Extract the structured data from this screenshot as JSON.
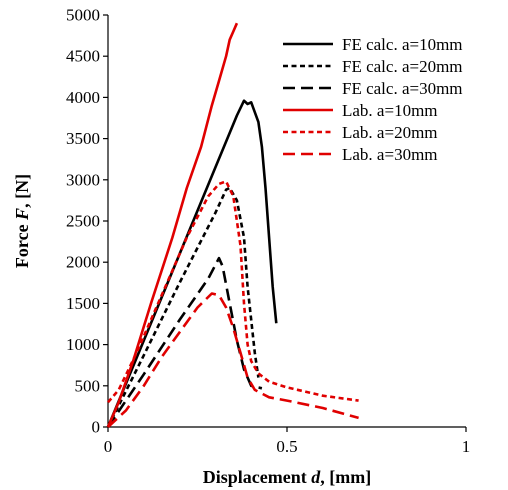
{
  "chart_data": {
    "type": "line",
    "title": "",
    "xlabel_prefix": "Displacement ",
    "xlabel_var": "d",
    "xlabel_suffix": ", [mm]",
    "ylabel_prefix": "Force ",
    "ylabel_var": "F",
    "ylabel_suffix": ", [N]",
    "xlim": [
      0,
      1
    ],
    "ylim": [
      0,
      5000
    ],
    "xticks": [
      0,
      0.5,
      1
    ],
    "xtick_labels": [
      "0",
      "0.5",
      "1"
    ],
    "yticks": [
      0,
      500,
      1000,
      1500,
      2000,
      2500,
      3000,
      3500,
      4000,
      4500,
      5000
    ],
    "ytick_labels": [
      "0",
      "500",
      "1000",
      "1500",
      "2000",
      "2500",
      "3000",
      "3500",
      "4000",
      "4500",
      "5000"
    ],
    "grid": false,
    "legend_position": "top-right",
    "series": [
      {
        "name": "FE calc. a=10mm",
        "color": "#000000",
        "dash": "solid",
        "x": [
          0,
          0.1,
          0.2,
          0.3,
          0.36,
          0.38,
          0.39,
          0.4,
          0.42,
          0.43,
          0.44,
          0.45,
          0.46,
          0.47
        ],
        "y": [
          0,
          1050,
          2100,
          3150,
          3780,
          3960,
          3920,
          3940,
          3700,
          3400,
          2900,
          2300,
          1700,
          1260
        ]
      },
      {
        "name": "FE calc. a=20mm",
        "color": "#000000",
        "dash": "short",
        "x": [
          0,
          0.1,
          0.2,
          0.3,
          0.33,
          0.34,
          0.36,
          0.38,
          0.39,
          0.4,
          0.41,
          0.42
        ],
        "y": [
          0,
          870,
          1750,
          2600,
          2880,
          2900,
          2750,
          2300,
          1700,
          1300,
          900,
          600
        ]
      },
      {
        "name": "FE calc. a=30mm",
        "color": "#000000",
        "dash": "long",
        "x": [
          0,
          0.1,
          0.2,
          0.28,
          0.31,
          0.32,
          0.34,
          0.36,
          0.38,
          0.4,
          0.43
        ],
        "y": [
          0,
          640,
          1300,
          1800,
          2050,
          1950,
          1500,
          1050,
          700,
          500,
          470
        ]
      },
      {
        "name": "Lab. a=10mm",
        "color": "#e00000",
        "dash": "solid",
        "x": [
          0,
          0.03,
          0.07,
          0.12,
          0.18,
          0.22,
          0.26,
          0.29,
          0.31,
          0.33,
          0.34,
          0.35,
          0.36
        ],
        "y": [
          0,
          300,
          800,
          1500,
          2300,
          2900,
          3400,
          3900,
          4200,
          4500,
          4700,
          4800,
          4900
        ]
      },
      {
        "name": "Lab. a=20mm",
        "color": "#e00000",
        "dash": "short",
        "x": [
          0,
          0.03,
          0.08,
          0.15,
          0.22,
          0.28,
          0.31,
          0.33,
          0.35,
          0.37,
          0.38,
          0.39,
          0.4,
          0.42,
          0.45,
          0.5,
          0.6,
          0.7
        ],
        "y": [
          300,
          450,
          900,
          1600,
          2300,
          2800,
          2950,
          2980,
          2800,
          2200,
          1500,
          1000,
          800,
          650,
          550,
          480,
          380,
          320
        ]
      },
      {
        "name": "Lab. a=30mm",
        "color": "#e00000",
        "dash": "long",
        "x": [
          0,
          0.05,
          0.1,
          0.15,
          0.2,
          0.25,
          0.29,
          0.31,
          0.33,
          0.35,
          0.37,
          0.39,
          0.41,
          0.45,
          0.5,
          0.6,
          0.7
        ],
        "y": [
          0,
          200,
          500,
          850,
          1150,
          1450,
          1620,
          1600,
          1450,
          1200,
          900,
          600,
          450,
          360,
          320,
          230,
          110
        ]
      }
    ]
  }
}
